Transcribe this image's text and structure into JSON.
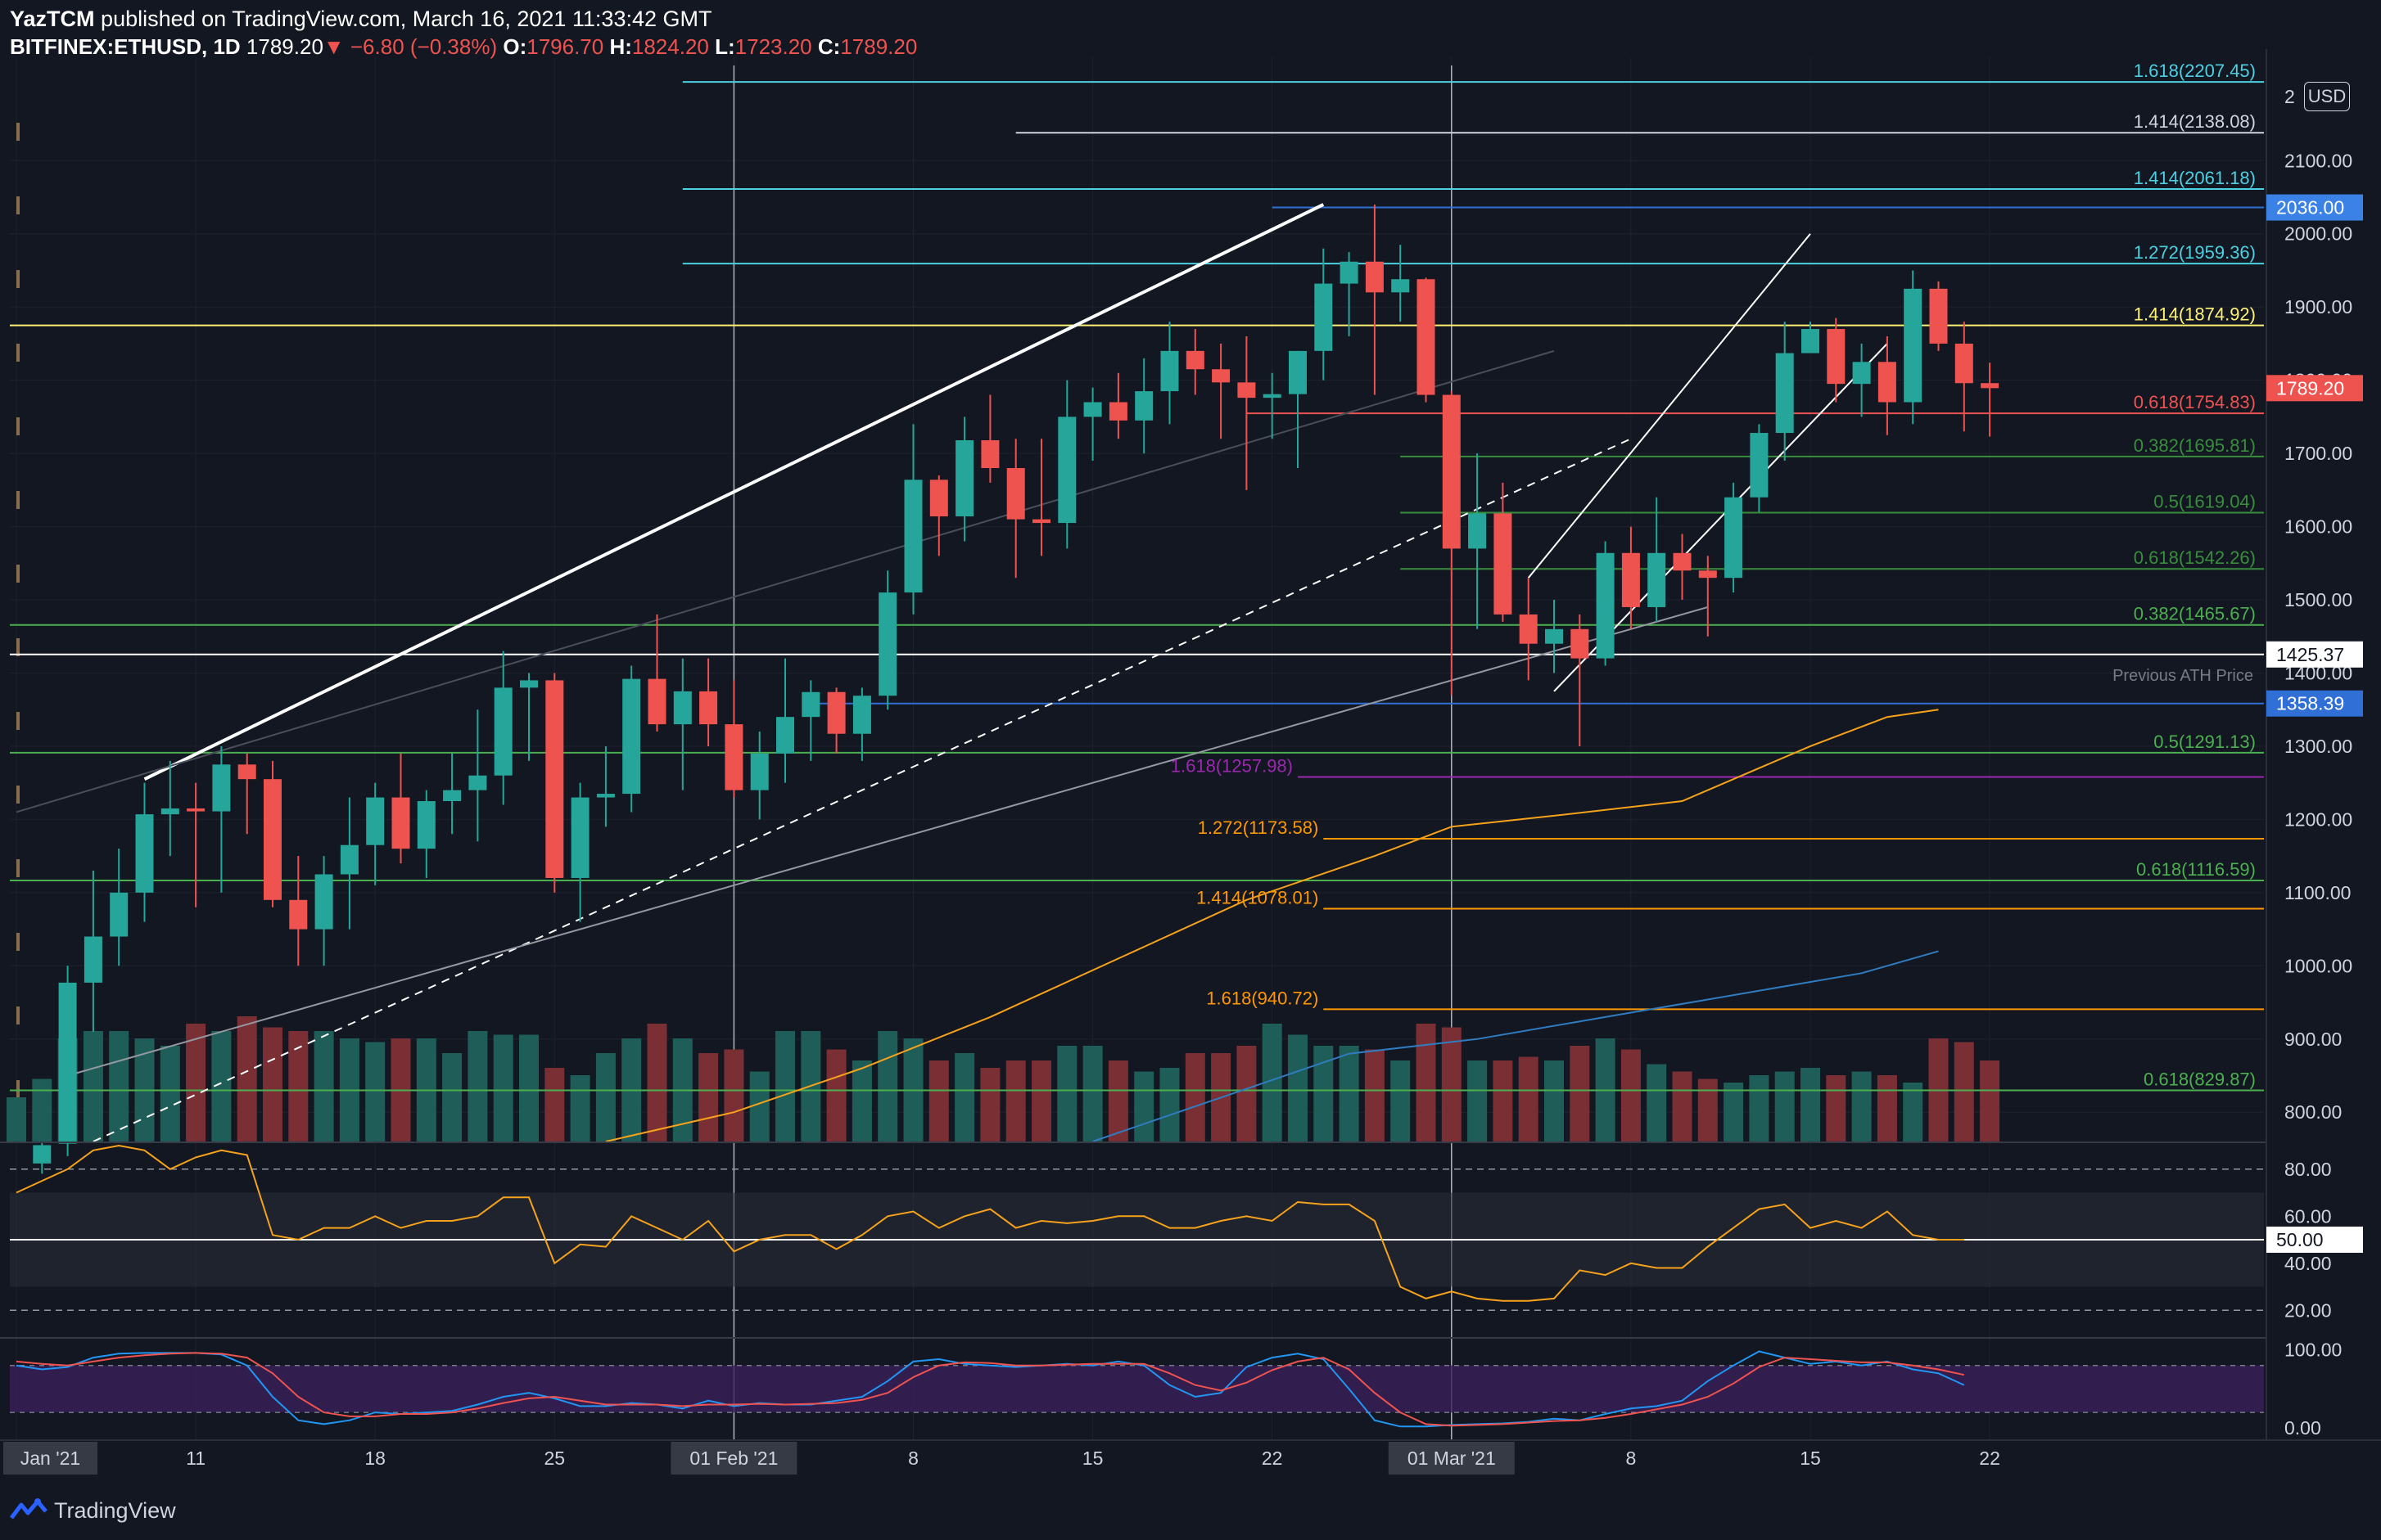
{
  "header": {
    "publisher": "YazTCM",
    "published_text": "published on TradingView.com, March 16, 2021 11:33:42 GMT",
    "symbol": "BITFINEX:ETHUSD, 1D",
    "last": "1789.20",
    "change_arrow": "▼",
    "change": "−6.80 (−0.38%)",
    "o_label": "O:",
    "o": "1796.70",
    "h_label": "H:",
    "h": "1824.20",
    "l_label": "L:",
    "l": "1723.20",
    "c_label": "C:",
    "c": "1789.20"
  },
  "currency_button": "USD",
  "branding": "TradingView",
  "colors": {
    "background": "#131722",
    "up": "#26a69a",
    "down": "#ef5350",
    "rsi": "#f7a21b",
    "stoch_k": "#2196f3",
    "stoch_d": "#ef5350",
    "fib_cyan": "#4dd0e1",
    "fib_green": "#4caf50",
    "fib_orange": "#ff9800",
    "fib_purple": "#9c27b0",
    "fib_yellow": "#fff176"
  },
  "chart_data": {
    "type": "candlestick",
    "title": "",
    "y_range": [
      760,
      2230
    ],
    "x_range_days": [
      -1,
      52
    ],
    "y_ticks": [
      800,
      900,
      1000,
      1100,
      1200,
      1300,
      1400,
      1500,
      1600,
      1700,
      1800,
      1900,
      2000,
      2100
    ],
    "y_tick_labels": [
      "800.00",
      "900.00",
      "1000.00",
      "1100.00",
      "1200.00",
      "1300.00",
      "1400.00",
      "1500.00",
      "1600.00",
      "1700.00",
      "1800.00",
      "1900.00",
      "2000.00",
      "2100.00"
    ],
    "top_tick_label": "2",
    "x_ticks": [
      {
        "day": 0,
        "label": "Jan '21",
        "boxed": true
      },
      {
        "day": 7,
        "label": "11"
      },
      {
        "day": 14,
        "label": "18"
      },
      {
        "day": 21,
        "label": "25"
      },
      {
        "day": 28,
        "label": "01 Feb '21",
        "boxed": true
      },
      {
        "day": 35,
        "label": "8"
      },
      {
        "day": 42,
        "label": "15"
      },
      {
        "day": 49,
        "label": "22"
      },
      {
        "day": 56,
        "label": "01 Mar '21",
        "boxed": true
      },
      {
        "day": 63,
        "label": "8"
      },
      {
        "day": 70,
        "label": "15"
      },
      {
        "day": 77,
        "label": "22"
      }
    ],
    "candles": [
      [
        1,
        730,
        760,
        716,
        755
      ],
      [
        2,
        757,
        1000,
        740,
        977
      ],
      [
        3,
        977,
        1130,
        910,
        1040
      ],
      [
        4,
        1040,
        1160,
        1000,
        1100
      ],
      [
        5,
        1100,
        1250,
        1060,
        1207
      ],
      [
        6,
        1207,
        1280,
        1150,
        1215
      ],
      [
        7,
        1215,
        1250,
        1080,
        1211
      ],
      [
        8,
        1211,
        1300,
        1100,
        1275
      ],
      [
        9,
        1275,
        1290,
        1180,
        1255
      ],
      [
        10,
        1255,
        1280,
        1080,
        1090
      ],
      [
        11,
        1090,
        1150,
        1000,
        1050
      ],
      [
        12,
        1050,
        1150,
        1000,
        1125
      ],
      [
        13,
        1125,
        1230,
        1050,
        1165
      ],
      [
        14,
        1165,
        1250,
        1110,
        1230
      ],
      [
        15,
        1230,
        1290,
        1140,
        1160
      ],
      [
        16,
        1160,
        1240,
        1120,
        1225
      ],
      [
        17,
        1225,
        1290,
        1180,
        1240
      ],
      [
        18,
        1240,
        1350,
        1170,
        1260
      ],
      [
        19,
        1260,
        1430,
        1220,
        1380
      ],
      [
        20,
        1380,
        1400,
        1280,
        1390
      ],
      [
        21,
        1390,
        1400,
        1100,
        1120
      ],
      [
        22,
        1120,
        1250,
        1060,
        1230
      ],
      [
        23,
        1230,
        1300,
        1190,
        1235
      ],
      [
        24,
        1235,
        1410,
        1210,
        1392
      ],
      [
        25,
        1392,
        1480,
        1320,
        1330
      ],
      [
        26,
        1330,
        1420,
        1240,
        1375
      ],
      [
        27,
        1375,
        1420,
        1300,
        1330
      ],
      [
        28,
        1330,
        1390,
        1230,
        1240
      ],
      [
        29,
        1240,
        1320,
        1200,
        1290
      ],
      [
        30,
        1290,
        1420,
        1250,
        1340
      ],
      [
        31,
        1340,
        1390,
        1280,
        1374
      ],
      [
        32,
        1374,
        1380,
        1290,
        1317
      ],
      [
        33,
        1317,
        1380,
        1280,
        1369
      ],
      [
        34,
        1369,
        1540,
        1350,
        1510
      ],
      [
        35,
        1510,
        1740,
        1480,
        1664
      ],
      [
        36,
        1664,
        1670,
        1560,
        1614
      ],
      [
        37,
        1614,
        1750,
        1580,
        1718
      ],
      [
        38,
        1718,
        1780,
        1660,
        1680
      ],
      [
        39,
        1680,
        1720,
        1530,
        1610
      ],
      [
        40,
        1610,
        1720,
        1560,
        1605
      ],
      [
        41,
        1605,
        1800,
        1570,
        1750
      ],
      [
        42,
        1750,
        1790,
        1690,
        1770
      ],
      [
        43,
        1770,
        1810,
        1720,
        1745
      ],
      [
        44,
        1745,
        1830,
        1700,
        1785
      ],
      [
        45,
        1785,
        1880,
        1740,
        1840
      ],
      [
        46,
        1840,
        1870,
        1780,
        1815
      ],
      [
        47,
        1815,
        1850,
        1720,
        1797
      ],
      [
        48,
        1797,
        1860,
        1650,
        1776
      ],
      [
        49,
        1776,
        1810,
        1720,
        1781
      ],
      [
        50,
        1781,
        1840,
        1680,
        1840
      ],
      [
        51,
        1840,
        1980,
        1800,
        1932
      ],
      [
        52,
        1932,
        1975,
        1860,
        1962
      ],
      [
        53,
        1962,
        2040,
        1780,
        1920
      ],
      [
        54,
        1920,
        1985,
        1880,
        1938
      ],
      [
        55,
        1938,
        1940,
        1770,
        1780
      ],
      [
        56,
        1780,
        1785,
        1370,
        1570
      ],
      [
        57,
        1570,
        1700,
        1460,
        1618
      ],
      [
        58,
        1618,
        1660,
        1470,
        1480
      ],
      [
        59,
        1480,
        1530,
        1390,
        1440
      ],
      [
        60,
        1440,
        1500,
        1400,
        1460
      ],
      [
        61,
        1460,
        1480,
        1300,
        1420
      ],
      [
        62,
        1420,
        1580,
        1410,
        1564
      ],
      [
        63,
        1564,
        1600,
        1460,
        1490
      ],
      [
        64,
        1490,
        1640,
        1470,
        1564
      ],
      [
        65,
        1564,
        1590,
        1500,
        1540
      ],
      [
        66,
        1540,
        1560,
        1450,
        1530
      ],
      [
        67,
        1530,
        1660,
        1510,
        1640
      ],
      [
        68,
        1640,
        1740,
        1620,
        1728
      ],
      [
        69,
        1728,
        1880,
        1690,
        1837
      ],
      [
        70,
        1837,
        1880,
        1840,
        1870
      ],
      [
        71,
        1870,
        1885,
        1770,
        1795
      ],
      [
        72,
        1795,
        1850,
        1750,
        1825
      ],
      [
        73,
        1825,
        1860,
        1725,
        1770
      ],
      [
        74,
        1770,
        1950,
        1740,
        1925
      ],
      [
        75,
        1925,
        1935,
        1840,
        1850
      ],
      [
        76,
        1850,
        1880,
        1730,
        1796
      ],
      [
        77,
        1796,
        1824,
        1723,
        1789.2
      ]
    ],
    "volume_series": [
      60,
      85,
      140,
      150,
      150,
      140,
      130,
      160,
      150,
      170,
      155,
      150,
      150,
      140,
      135,
      140,
      140,
      120,
      150,
      145,
      145,
      100,
      90,
      120,
      140,
      160,
      140,
      120,
      125,
      95,
      150,
      150,
      125,
      110,
      150,
      140,
      110,
      120,
      100,
      110,
      110,
      130,
      130,
      110,
      95,
      100,
      120,
      120,
      130,
      160,
      145,
      130,
      130,
      125,
      110,
      160,
      155,
      110,
      110,
      115,
      110,
      130,
      140,
      125,
      105,
      95,
      85,
      80,
      90,
      95,
      100,
      90,
      95,
      90,
      80,
      140,
      135,
      110
    ],
    "sma_series": [
      {
        "name": "",
        "color": "#f7a21b",
        "points": [
          [
            23,
            760
          ],
          [
            28,
            800
          ],
          [
            33,
            860
          ],
          [
            38,
            930
          ],
          [
            43,
            1010
          ],
          [
            48,
            1090
          ],
          [
            53,
            1150
          ],
          [
            56,
            1190
          ],
          [
            60,
            1205
          ],
          [
            65,
            1225
          ],
          [
            70,
            1300
          ],
          [
            73,
            1340
          ],
          [
            75,
            1350
          ]
        ]
      },
      {
        "name": "",
        "color": "#2f7cc0",
        "points": [
          [
            42,
            760
          ],
          [
            47,
            820
          ],
          [
            52,
            880
          ],
          [
            57,
            900
          ],
          [
            62,
            930
          ],
          [
            67,
            960
          ],
          [
            72,
            990
          ],
          [
            75,
            1020
          ]
        ]
      }
    ],
    "trendlines": [
      {
        "from": [
          5,
          1255
        ],
        "to": [
          51,
          2040
        ],
        "color": "#ffffff",
        "width": 4,
        "dash": false
      },
      {
        "from": [
          3,
          760
        ],
        "to": [
          63,
          1720
        ],
        "color": "#ffffff",
        "width": 2,
        "dash": true
      },
      {
        "from": [
          2,
          850
        ],
        "to": [
          66,
          1490
        ],
        "color": "#9598a1",
        "width": 2,
        "dash": false
      },
      {
        "from": [
          0,
          1210
        ],
        "to": [
          60,
          1840
        ],
        "color": "#4a4e5a",
        "width": 2,
        "dash": false
      },
      {
        "from": [
          59,
          1530
        ],
        "to": [
          70,
          2000
        ],
        "color": "#ffffff",
        "width": 2,
        "dash": false
      },
      {
        "from": [
          60,
          1375
        ],
        "to": [
          73,
          1850
        ],
        "color": "#ffffff",
        "width": 2,
        "dash": false
      }
    ],
    "h_levels": [
      {
        "value": 2207.45,
        "label": "1.618(2207.45)",
        "color": "#4dd0e1",
        "x_start": 26,
        "label_side": "right"
      },
      {
        "value": 2138.08,
        "label": "1.414(2138.08)",
        "color": "#d1d4dc",
        "x_start": 39,
        "label_side": "right"
      },
      {
        "value": 2061.18,
        "label": "1.414(2061.18)",
        "color": "#4dd0e1",
        "x_start": 26,
        "label_side": "right"
      },
      {
        "value": 2036.0,
        "label": "",
        "color": "#2f6fd6",
        "x_start": 49,
        "label_side": "right",
        "axis_tag": "2036.00",
        "tag_bg": "#3b82e6"
      },
      {
        "value": 1959.36,
        "label": "1.272(1959.36)",
        "color": "#4dd0e1",
        "x_start": 26,
        "label_side": "right"
      },
      {
        "value": 1874.92,
        "label": "1.414(1874.92)",
        "color": "#fff176",
        "x_start": -1,
        "label_side": "right"
      },
      {
        "value": 1754.83,
        "label": "0.618(1754.83)",
        "color": "#ef5350",
        "x_start": 48,
        "label_side": "right"
      },
      {
        "value": 1695.81,
        "label": "0.382(1695.81)",
        "color": "#388e3c",
        "x_start": 54,
        "label_side": "right"
      },
      {
        "value": 1619.04,
        "label": "0.5(1619.04)",
        "color": "#388e3c",
        "x_start": 54,
        "label_side": "right"
      },
      {
        "value": 1542.26,
        "label": "0.618(1542.26)",
        "color": "#388e3c",
        "x_start": 54,
        "label_side": "right"
      },
      {
        "value": 1465.67,
        "label": "0.382(1465.67)",
        "color": "#4caf50",
        "x_start": -1,
        "label_side": "right"
      },
      {
        "value": 1425.37,
        "label": "",
        "color": "#ffffff",
        "x_start": -1,
        "label_side": "right",
        "axis_tag": "1425.37",
        "tag_bg": "#ffffff",
        "tag_fg": "#131722"
      },
      {
        "value": 1358.39,
        "label": "",
        "color": "#2f6fd6",
        "x_start": 31,
        "label_side": "right",
        "axis_tag": "1358.39",
        "tag_bg": "#2f6fd6"
      },
      {
        "value": 1291.13,
        "label": "0.5(1291.13)",
        "color": "#4caf50",
        "x_start": -1,
        "label_side": "right"
      },
      {
        "value": 1257.98,
        "label": "1.618(1257.98)",
        "color": "#9c27b0",
        "x_start": 50,
        "label_side": "left"
      },
      {
        "value": 1173.58,
        "label": "1.272(1173.58)",
        "color": "#ff9800",
        "x_start": 51,
        "label_side": "left"
      },
      {
        "value": 1116.59,
        "label": "0.618(1116.59)",
        "color": "#4caf50",
        "x_start": -1,
        "label_side": "right"
      },
      {
        "value": 1078.01,
        "label": "1.414(1078.01)",
        "color": "#ff9800",
        "x_start": 51,
        "label_side": "left"
      },
      {
        "value": 940.72,
        "label": "1.618(940.72)",
        "color": "#ff9800",
        "x_start": 51,
        "label_side": "left"
      },
      {
        "value": 829.87,
        "label": "0.618(829.87)",
        "color": "#4caf50",
        "x_start": -1,
        "label_side": "right"
      }
    ],
    "annotation": "Previous ATH Price",
    "last_price_tag": "1789.20",
    "rsi": {
      "y_range": [
        10,
        90
      ],
      "ticks": [
        20,
        40,
        60,
        80
      ],
      "tick_labels": [
        "20.00",
        "40.00",
        "60.00",
        "80.00"
      ],
      "mid_tag": "50.00",
      "band": [
        30,
        70
      ],
      "values": [
        70,
        75,
        80,
        88,
        90,
        88,
        80,
        85,
        88,
        86,
        52,
        50,
        55,
        55,
        60,
        55,
        58,
        58,
        60,
        68,
        68,
        40,
        48,
        47,
        60,
        55,
        50,
        58,
        45,
        50,
        52,
        52,
        46,
        52,
        60,
        62,
        55,
        60,
        63,
        55,
        58,
        57,
        58,
        60,
        60,
        55,
        55,
        58,
        60,
        58,
        66,
        65,
        65,
        58,
        30,
        25,
        28,
        25,
        24,
        24,
        25,
        37,
        35,
        40,
        38,
        38,
        47,
        55,
        63,
        65,
        55,
        58,
        55,
        62,
        52,
        50,
        50
      ],
      "values_start_day": 0
    },
    "stoch": {
      "y_range": [
        -5,
        110
      ],
      "ticks": [
        0,
        100
      ],
      "tick_labels": [
        "0.00",
        "100.00"
      ],
      "k": [
        80,
        75,
        78,
        90,
        95,
        96,
        96,
        96,
        94,
        80,
        40,
        10,
        5,
        10,
        20,
        18,
        20,
        22,
        30,
        40,
        45,
        38,
        28,
        28,
        32,
        30,
        25,
        35,
        28,
        32,
        30,
        30,
        35,
        40,
        60,
        85,
        88,
        82,
        80,
        78,
        80,
        82,
        80,
        85,
        80,
        55,
        40,
        45,
        78,
        90,
        95,
        88,
        50,
        10,
        2,
        2,
        4,
        5,
        6,
        8,
        12,
        10,
        18,
        25,
        28,
        35,
        60,
        80,
        98,
        90,
        82,
        85,
        80,
        85,
        75,
        70,
        55
      ],
      "d": [
        85,
        82,
        80,
        85,
        90,
        93,
        95,
        96,
        95,
        90,
        70,
        40,
        20,
        15,
        15,
        18,
        18,
        20,
        25,
        32,
        38,
        40,
        35,
        30,
        30,
        30,
        28,
        30,
        30,
        31,
        30,
        31,
        32,
        36,
        45,
        65,
        80,
        84,
        83,
        80,
        80,
        81,
        82,
        82,
        82,
        70,
        55,
        48,
        58,
        74,
        85,
        90,
        75,
        45,
        20,
        5,
        3,
        4,
        5,
        7,
        9,
        10,
        13,
        18,
        24,
        30,
        40,
        57,
        78,
        90,
        88,
        86,
        84,
        84,
        80,
        75,
        68
      ],
      "start_day": 0,
      "band": [
        20,
        80
      ]
    }
  }
}
